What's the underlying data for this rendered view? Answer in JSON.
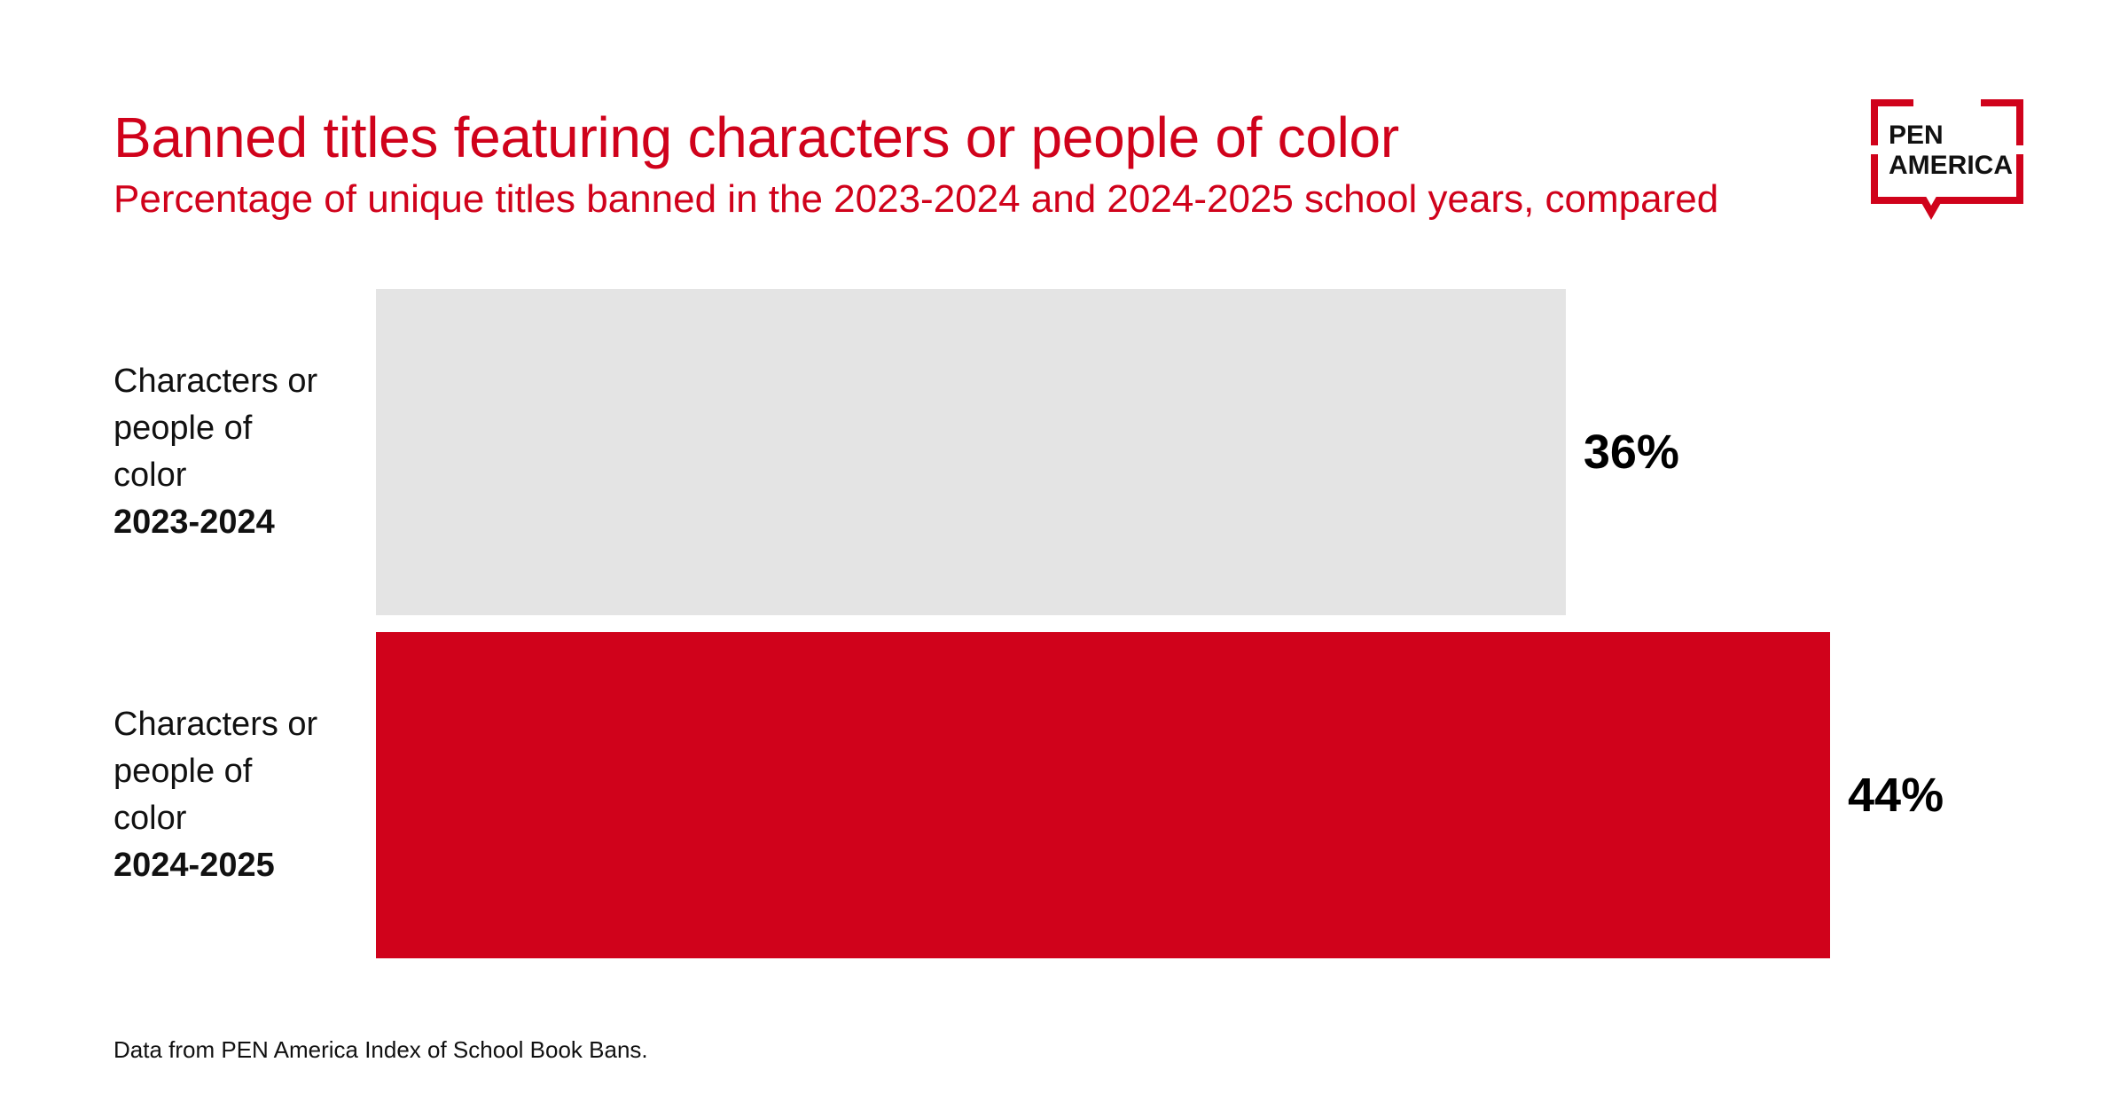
{
  "header": {
    "title": "Banned titles featuring characters or people of color",
    "subtitle": "Percentage of unique titles banned in the 2023-2024 and 2024-2025 school years, compared"
  },
  "logo": {
    "line1": "PEN",
    "line2": "AMERICA",
    "color": "#d0021b"
  },
  "footnote": "Data from PEN America Index of School Book Bans.",
  "chart_data": {
    "type": "bar",
    "orientation": "horizontal",
    "categories": [
      {
        "lines": [
          "Characters or",
          "people of",
          "color"
        ],
        "year": "2023-2024"
      },
      {
        "lines": [
          "Characters or",
          "people of",
          "color"
        ],
        "year": "2024-2025"
      }
    ],
    "values": [
      36,
      44
    ],
    "value_labels": [
      "36%",
      "44%"
    ],
    "colors": [
      "#e4e4e4",
      "#d0021b"
    ],
    "title": "Banned titles featuring characters or people of color",
    "subtitle": "Percentage of unique titles banned in the 2023-2024 and 2024-2025 school years, compared",
    "xlabel": "",
    "ylabel": "",
    "xlim": [
      0,
      50
    ],
    "unit": "%",
    "grid": false,
    "legend": "none"
  }
}
